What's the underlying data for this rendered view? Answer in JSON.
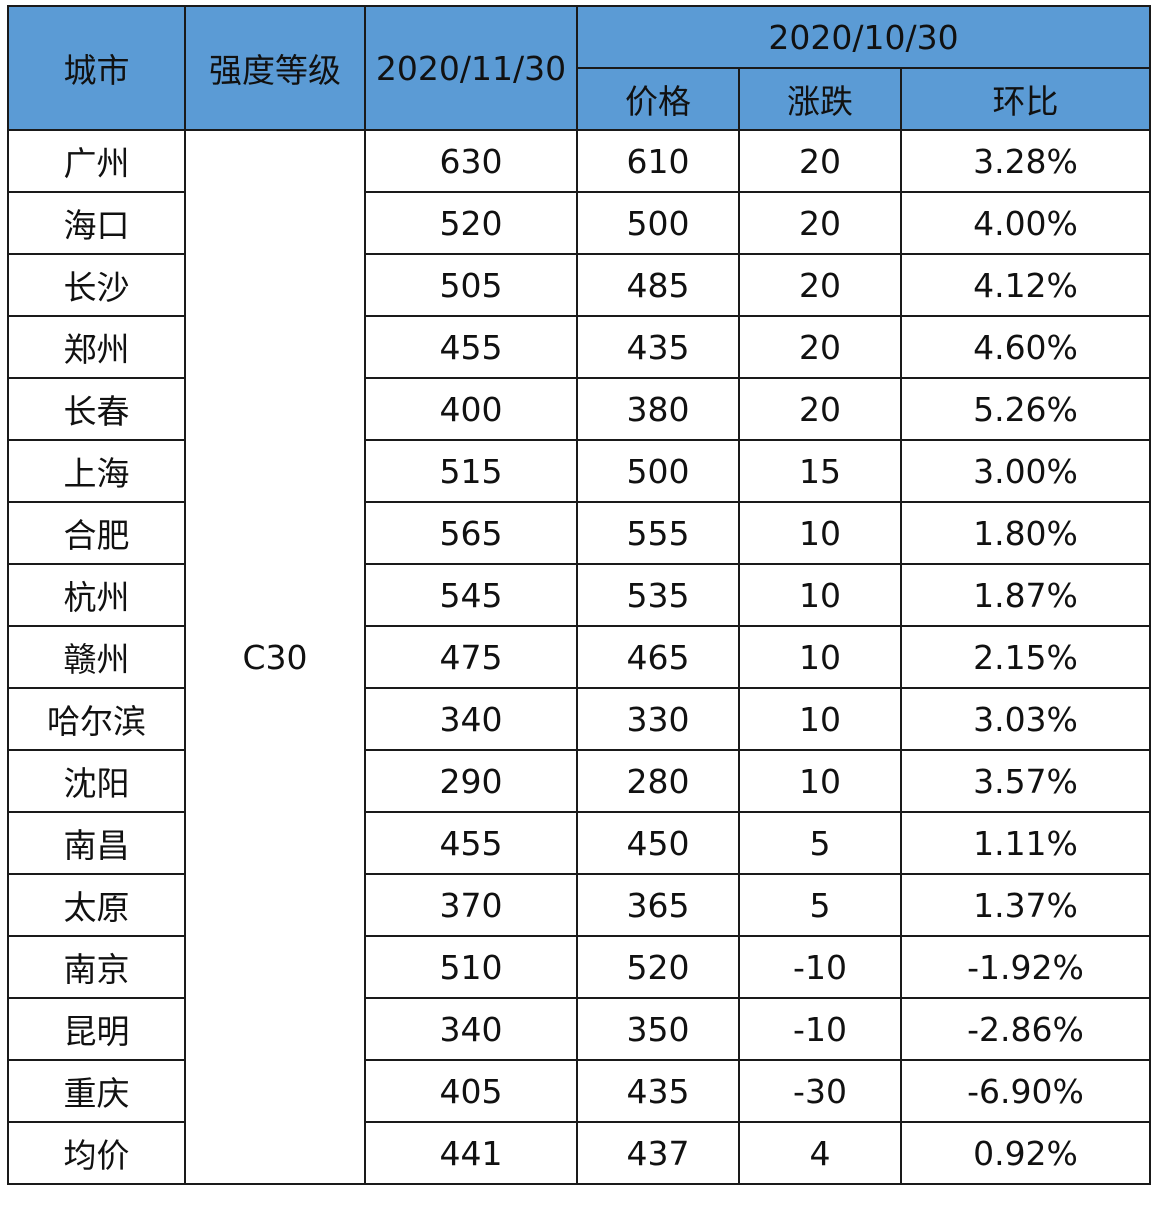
{
  "header": {
    "city": "城市",
    "grade": "强度等级",
    "current_date": "2020/11/30",
    "prev_date": "2020/10/30",
    "price": "价格",
    "change": "涨跌",
    "ratio": "环比"
  },
  "grade_value": "C30",
  "rows": [
    {
      "city": "广州",
      "current": "630",
      "prev": "610",
      "change": "20",
      "ratio": "3.28%",
      "trend": "up"
    },
    {
      "city": "海口",
      "current": "520",
      "prev": "500",
      "change": "20",
      "ratio": "4.00%",
      "trend": "up"
    },
    {
      "city": "长沙",
      "current": "505",
      "prev": "485",
      "change": "20",
      "ratio": "4.12%",
      "trend": "up"
    },
    {
      "city": "郑州",
      "current": "455",
      "prev": "435",
      "change": "20",
      "ratio": "4.60%",
      "trend": "up"
    },
    {
      "city": "长春",
      "current": "400",
      "prev": "380",
      "change": "20",
      "ratio": "5.26%",
      "trend": "up"
    },
    {
      "city": "上海",
      "current": "515",
      "prev": "500",
      "change": "15",
      "ratio": "3.00%",
      "trend": "up"
    },
    {
      "city": "合肥",
      "current": "565",
      "prev": "555",
      "change": "10",
      "ratio": "1.80%",
      "trend": "up"
    },
    {
      "city": "杭州",
      "current": "545",
      "prev": "535",
      "change": "10",
      "ratio": "1.87%",
      "trend": "up"
    },
    {
      "city": "赣州",
      "current": "475",
      "prev": "465",
      "change": "10",
      "ratio": "2.15%",
      "trend": "up"
    },
    {
      "city": "哈尔滨",
      "current": "340",
      "prev": "330",
      "change": "10",
      "ratio": "3.03%",
      "trend": "up"
    },
    {
      "city": "沈阳",
      "current": "290",
      "prev": "280",
      "change": "10",
      "ratio": "3.57%",
      "trend": "up"
    },
    {
      "city": "南昌",
      "current": "455",
      "prev": "450",
      "change": "5",
      "ratio": "1.11%",
      "trend": "up"
    },
    {
      "city": "太原",
      "current": "370",
      "prev": "365",
      "change": "5",
      "ratio": "1.37%",
      "trend": "up"
    },
    {
      "city": "南京",
      "current": "510",
      "prev": "520",
      "change": "-10",
      "ratio": "-1.92%",
      "trend": "down"
    },
    {
      "city": "昆明",
      "current": "340",
      "prev": "350",
      "change": "-10",
      "ratio": "-2.86%",
      "trend": "down"
    },
    {
      "city": "重庆",
      "current": "405",
      "prev": "435",
      "change": "-30",
      "ratio": "-6.90%",
      "trend": "down"
    },
    {
      "city": "均价",
      "current": "441",
      "prev": "437",
      "change": "4",
      "ratio": "0.92%",
      "trend": "up"
    }
  ],
  "colors": {
    "header_bg": "#5b9bd5",
    "up": "#e00000",
    "down": "#1fa34a",
    "border": "#1a1a1a"
  }
}
